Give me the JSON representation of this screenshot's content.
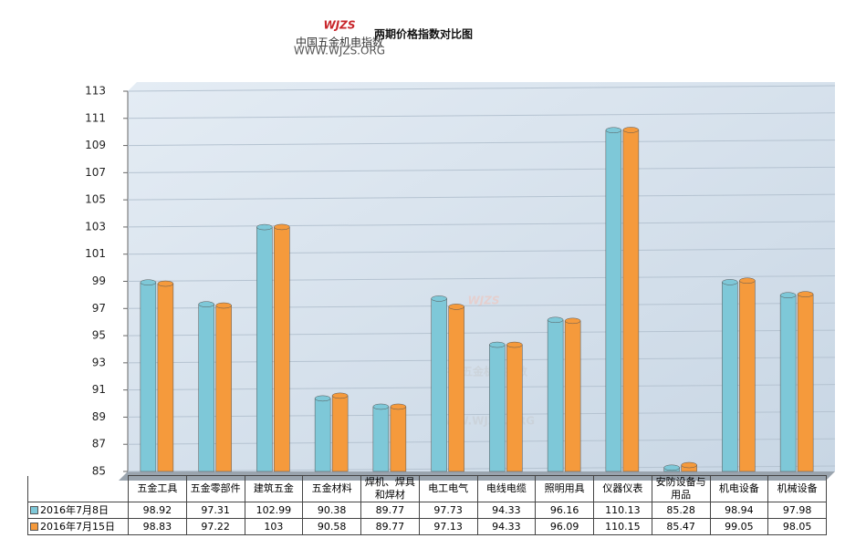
{
  "logo": {
    "mark": "WJZS",
    "name": "中国五金机电指数",
    "url": "WWW.WJZS.ORG"
  },
  "chart_data": {
    "type": "bar",
    "title": "两期价格指数对比图",
    "categories": [
      "五金工具",
      "五金零部件",
      "建筑五金",
      "五金材料",
      "焊机、焊具和焊材",
      "电工电气",
      "电线电缆",
      "照明用具",
      "仪器仪表",
      "安防设备与用品",
      "机电设备",
      "机械设备"
    ],
    "series": [
      {
        "name": "2016年7月8日",
        "color": "#7ec8d8",
        "values": [
          98.92,
          97.31,
          102.99,
          90.38,
          89.77,
          97.73,
          94.33,
          96.16,
          110.13,
          85.28,
          98.94,
          97.98
        ]
      },
      {
        "name": "2016年7月15日",
        "color": "#f59a3c",
        "values": [
          98.83,
          97.22,
          103,
          90.58,
          89.77,
          97.13,
          94.33,
          96.09,
          110.15,
          85.47,
          99.05,
          98.05
        ]
      }
    ],
    "ylim": [
      85,
      113
    ],
    "yticks": [
      85,
      87,
      89,
      91,
      93,
      95,
      97,
      99,
      101,
      103,
      105,
      107,
      109,
      111,
      113
    ],
    "grid": true,
    "legend": "table"
  }
}
